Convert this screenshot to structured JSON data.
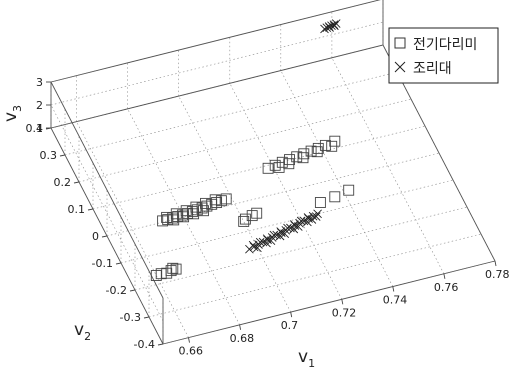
{
  "chart_data": {
    "type": "scatter",
    "subtype": "3d-scatter",
    "xlabel": "v",
    "xlabel_sub": "1",
    "ylabel": "v",
    "ylabel_sub": "2",
    "zlabel": "v",
    "zlabel_sub": "3",
    "xlim": [
      0.65,
      0.78
    ],
    "ylim": [
      -0.4,
      0.4
    ],
    "zlim": [
      1,
      3
    ],
    "xticks": [
      "0.66",
      "0.68",
      "0.7",
      "0.72",
      "0.74",
      "0.76",
      "0.78"
    ],
    "yticks": [
      "-0.4",
      "-0.3",
      "-0.2",
      "-0.1",
      "0",
      "0.1",
      "0.2",
      "0.3",
      "0.4"
    ],
    "zticks": [
      "1",
      "2",
      "3"
    ],
    "grid": true,
    "legend_position": "top-right",
    "series": [
      {
        "name": "전기다리미",
        "marker": "square",
        "color": "#444444",
        "points": [
          [
            0.66,
            -0.17,
            1
          ],
          [
            0.662,
            -0.168,
            1
          ],
          [
            0.664,
            -0.171,
            1
          ],
          [
            0.666,
            -0.166,
            1
          ],
          [
            0.668,
            -0.165,
            1
          ],
          [
            0.667,
            -0.16,
            1
          ],
          [
            0.672,
            0.004,
            1
          ],
          [
            0.674,
            0.004,
            1
          ],
          [
            0.676,
            0.005,
            1
          ],
          [
            0.678,
            0.006,
            1
          ],
          [
            0.68,
            0.007,
            1
          ],
          [
            0.682,
            0.008,
            1
          ],
          [
            0.684,
            0.01,
            1
          ],
          [
            0.686,
            0.012,
            1
          ],
          [
            0.688,
            0.014,
            1
          ],
          [
            0.69,
            0.016,
            1
          ],
          [
            0.692,
            0.018,
            1
          ],
          [
            0.694,
            0.02,
            1
          ],
          [
            0.696,
            0.022,
            1
          ],
          [
            0.698,
            0.024,
            1
          ],
          [
            0.674,
            0.012,
            1
          ],
          [
            0.678,
            0.016,
            1
          ],
          [
            0.682,
            0.018,
            1
          ],
          [
            0.686,
            0.022,
            1
          ],
          [
            0.69,
            0.026,
            1
          ],
          [
            0.694,
            0.03,
            1
          ],
          [
            0.676,
            -0.002,
            1
          ],
          [
            0.68,
            0.0,
            1
          ],
          [
            0.684,
            0.002,
            1
          ],
          [
            0.688,
            0.004,
            1
          ],
          [
            0.701,
            -0.058,
            1
          ],
          [
            0.704,
            -0.052,
            1
          ],
          [
            0.7,
            -0.064,
            1
          ],
          [
            0.706,
            -0.048,
            1
          ],
          [
            0.73,
            -0.065,
            1
          ],
          [
            0.736,
            -0.058,
            1
          ],
          [
            0.742,
            -0.048,
            1
          ],
          [
            0.718,
            0.09,
            1
          ],
          [
            0.721,
            0.094,
            1
          ],
          [
            0.724,
            0.098,
            1
          ],
          [
            0.727,
            0.101,
            1
          ],
          [
            0.73,
            0.104,
            1
          ],
          [
            0.733,
            0.108,
            1
          ],
          [
            0.736,
            0.111,
            1
          ],
          [
            0.739,
            0.114,
            1
          ],
          [
            0.742,
            0.118,
            1
          ],
          [
            0.746,
            0.124,
            1
          ],
          [
            0.722,
            0.084,
            1
          ],
          [
            0.726,
            0.088,
            1
          ],
          [
            0.732,
            0.096,
            1
          ],
          [
            0.738,
            0.104,
            1
          ],
          [
            0.744,
            0.11,
            1
          ]
        ]
      },
      {
        "name": "조리대",
        "marker": "x",
        "color": "#222222",
        "points": [
          [
            0.697,
            -0.16,
            1
          ],
          [
            0.699,
            -0.156,
            1
          ],
          [
            0.701,
            -0.152,
            1
          ],
          [
            0.703,
            -0.148,
            1
          ],
          [
            0.705,
            -0.144,
            1
          ],
          [
            0.707,
            -0.14,
            1
          ],
          [
            0.709,
            -0.136,
            1
          ],
          [
            0.711,
            -0.132,
            1
          ],
          [
            0.713,
            -0.128,
            1
          ],
          [
            0.715,
            -0.124,
            1
          ],
          [
            0.717,
            -0.12,
            1
          ],
          [
            0.719,
            -0.116,
            1
          ],
          [
            0.721,
            -0.112,
            1
          ],
          [
            0.723,
            -0.108,
            1
          ],
          [
            0.725,
            -0.104,
            1
          ],
          [
            0.727,
            -0.1,
            1
          ],
          [
            0.699,
            -0.15,
            1
          ],
          [
            0.702,
            -0.146,
            1
          ],
          [
            0.705,
            -0.14,
            1
          ],
          [
            0.708,
            -0.134,
            1
          ],
          [
            0.711,
            -0.128,
            1
          ],
          [
            0.714,
            -0.122,
            1
          ],
          [
            0.717,
            -0.116,
            1
          ],
          [
            0.72,
            -0.11,
            1
          ],
          [
            0.723,
            -0.104,
            1
          ],
          [
            0.7,
            -0.162,
            1
          ],
          [
            0.706,
            -0.15,
            1
          ],
          [
            0.712,
            -0.138,
            1
          ],
          [
            0.718,
            -0.126,
            1
          ],
          [
            0.724,
            -0.114,
            1
          ],
          [
            0.704,
            -0.154,
            1
          ],
          [
            0.71,
            -0.142,
            1
          ],
          [
            0.716,
            -0.13,
            1
          ],
          [
            0.722,
            -0.118,
            1
          ],
          [
            0.726,
            -0.108,
            1
          ],
          [
            0.756,
            0.38,
            2.6
          ],
          [
            0.757,
            0.382,
            2.6
          ],
          [
            0.758,
            0.384,
            2.6
          ],
          [
            0.759,
            0.385,
            2.6
          ],
          [
            0.76,
            0.386,
            2.6
          ],
          [
            0.761,
            0.388,
            2.6
          ],
          [
            0.758,
            0.38,
            2.6
          ],
          [
            0.76,
            0.382,
            2.6
          ]
        ]
      }
    ]
  }
}
